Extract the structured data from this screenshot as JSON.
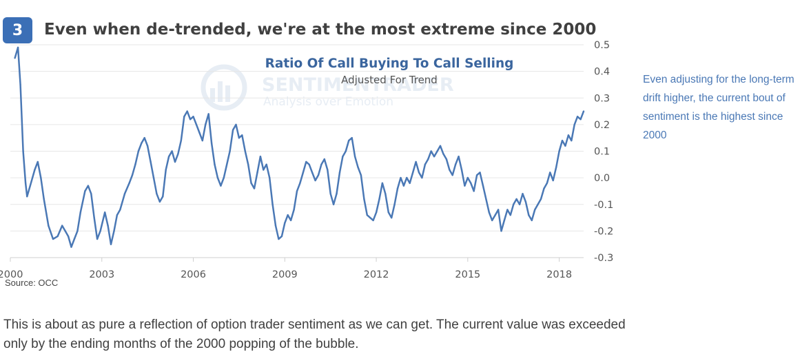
{
  "header": {
    "badge": "3",
    "title": "Even when de-trended, we're at the most extreme since 2000"
  },
  "colors": {
    "badge_bg": "#3b6fb6",
    "series": "#4a78b5",
    "note_text": "#4a78b5",
    "watermark": "#e7edf4"
  },
  "chart_data": {
    "type": "line",
    "title": "Ratio Of Call Buying To Call Selling",
    "subtitle": "Adjusted For Trend",
    "xlim": [
      2000.0,
      2018.8
    ],
    "ylim": [
      -0.3,
      0.5
    ],
    "x_ticks": [
      2000,
      2003,
      2006,
      2009,
      2012,
      2015,
      2018
    ],
    "x_tick_labels": [
      "2000",
      "2003",
      "2006",
      "2009",
      "2012",
      "2015",
      "2018"
    ],
    "y_ticks": [
      0.5,
      0.4,
      0.3,
      0.2,
      0.1,
      0.0,
      -0.1,
      -0.2,
      -0.3
    ],
    "y_tick_labels": [
      "0.5",
      "0.4",
      "0.3",
      "0.2",
      "0.1",
      "0.0",
      "-0.1",
      "-0.2",
      "-0.3"
    ],
    "grid": true,
    "series": [
      {
        "name": "",
        "points": [
          [
            2000.15,
            0.45
          ],
          [
            2000.25,
            0.49
          ],
          [
            2000.33,
            0.35
          ],
          [
            2000.42,
            0.1
          ],
          [
            2000.5,
            -0.02
          ],
          [
            2000.55,
            -0.07
          ],
          [
            2000.65,
            -0.03
          ],
          [
            2000.8,
            0.03
          ],
          [
            2000.9,
            0.06
          ],
          [
            2001.0,
            0.0
          ],
          [
            2001.1,
            -0.08
          ],
          [
            2001.25,
            -0.18
          ],
          [
            2001.4,
            -0.23
          ],
          [
            2001.55,
            -0.22
          ],
          [
            2001.7,
            -0.18
          ],
          [
            2001.8,
            -0.2
          ],
          [
            2001.9,
            -0.22
          ],
          [
            2002.0,
            -0.26
          ],
          [
            2002.1,
            -0.23
          ],
          [
            2002.2,
            -0.2
          ],
          [
            2002.3,
            -0.13
          ],
          [
            2002.45,
            -0.05
          ],
          [
            2002.55,
            -0.03
          ],
          [
            2002.65,
            -0.06
          ],
          [
            2002.75,
            -0.15
          ],
          [
            2002.85,
            -0.23
          ],
          [
            2002.95,
            -0.2
          ],
          [
            2003.1,
            -0.13
          ],
          [
            2003.2,
            -0.18
          ],
          [
            2003.3,
            -0.25
          ],
          [
            2003.4,
            -0.2
          ],
          [
            2003.5,
            -0.14
          ],
          [
            2003.6,
            -0.12
          ],
          [
            2003.75,
            -0.06
          ],
          [
            2003.9,
            -0.02
          ],
          [
            2004.0,
            0.01
          ],
          [
            2004.1,
            0.05
          ],
          [
            2004.2,
            0.1
          ],
          [
            2004.3,
            0.13
          ],
          [
            2004.4,
            0.15
          ],
          [
            2004.5,
            0.12
          ],
          [
            2004.6,
            0.06
          ],
          [
            2004.7,
            0.0
          ],
          [
            2004.8,
            -0.06
          ],
          [
            2004.9,
            -0.09
          ],
          [
            2005.0,
            -0.07
          ],
          [
            2005.1,
            0.03
          ],
          [
            2005.2,
            0.08
          ],
          [
            2005.3,
            0.1
          ],
          [
            2005.4,
            0.06
          ],
          [
            2005.5,
            0.09
          ],
          [
            2005.6,
            0.14
          ],
          [
            2005.7,
            0.23
          ],
          [
            2005.8,
            0.25
          ],
          [
            2005.9,
            0.22
          ],
          [
            2006.0,
            0.23
          ],
          [
            2006.1,
            0.2
          ],
          [
            2006.2,
            0.17
          ],
          [
            2006.3,
            0.14
          ],
          [
            2006.4,
            0.2
          ],
          [
            2006.5,
            0.24
          ],
          [
            2006.6,
            0.13
          ],
          [
            2006.7,
            0.05
          ],
          [
            2006.8,
            0.0
          ],
          [
            2006.9,
            -0.03
          ],
          [
            2007.0,
            0.0
          ],
          [
            2007.1,
            0.05
          ],
          [
            2007.2,
            0.1
          ],
          [
            2007.3,
            0.18
          ],
          [
            2007.4,
            0.2
          ],
          [
            2007.5,
            0.15
          ],
          [
            2007.6,
            0.16
          ],
          [
            2007.7,
            0.1
          ],
          [
            2007.8,
            0.05
          ],
          [
            2007.9,
            -0.02
          ],
          [
            2008.0,
            -0.04
          ],
          [
            2008.1,
            0.02
          ],
          [
            2008.2,
            0.08
          ],
          [
            2008.3,
            0.03
          ],
          [
            2008.4,
            0.05
          ],
          [
            2008.5,
            0.0
          ],
          [
            2008.6,
            -0.1
          ],
          [
            2008.7,
            -0.18
          ],
          [
            2008.8,
            -0.23
          ],
          [
            2008.9,
            -0.22
          ],
          [
            2009.0,
            -0.17
          ],
          [
            2009.1,
            -0.14
          ],
          [
            2009.2,
            -0.16
          ],
          [
            2009.3,
            -0.12
          ],
          [
            2009.4,
            -0.05
          ],
          [
            2009.5,
            -0.02
          ],
          [
            2009.6,
            0.02
          ],
          [
            2009.7,
            0.06
          ],
          [
            2009.8,
            0.05
          ],
          [
            2009.9,
            0.02
          ],
          [
            2010.0,
            -0.01
          ],
          [
            2010.1,
            0.01
          ],
          [
            2010.2,
            0.05
          ],
          [
            2010.3,
            0.07
          ],
          [
            2010.4,
            0.03
          ],
          [
            2010.5,
            -0.06
          ],
          [
            2010.6,
            -0.1
          ],
          [
            2010.7,
            -0.06
          ],
          [
            2010.8,
            0.02
          ],
          [
            2010.9,
            0.08
          ],
          [
            2011.0,
            0.1
          ],
          [
            2011.1,
            0.14
          ],
          [
            2011.2,
            0.15
          ],
          [
            2011.3,
            0.08
          ],
          [
            2011.4,
            0.04
          ],
          [
            2011.5,
            0.01
          ],
          [
            2011.6,
            -0.08
          ],
          [
            2011.7,
            -0.14
          ],
          [
            2011.8,
            -0.15
          ],
          [
            2011.9,
            -0.16
          ],
          [
            2012.0,
            -0.13
          ],
          [
            2012.1,
            -0.08
          ],
          [
            2012.2,
            -0.02
          ],
          [
            2012.3,
            -0.06
          ],
          [
            2012.4,
            -0.13
          ],
          [
            2012.5,
            -0.15
          ],
          [
            2012.6,
            -0.1
          ],
          [
            2012.7,
            -0.04
          ],
          [
            2012.8,
            0.0
          ],
          [
            2012.9,
            -0.03
          ],
          [
            2013.0,
            0.0
          ],
          [
            2013.1,
            -0.02
          ],
          [
            2013.2,
            0.02
          ],
          [
            2013.3,
            0.06
          ],
          [
            2013.4,
            0.02
          ],
          [
            2013.5,
            0.0
          ],
          [
            2013.6,
            0.05
          ],
          [
            2013.7,
            0.07
          ],
          [
            2013.8,
            0.1
          ],
          [
            2013.9,
            0.08
          ],
          [
            2014.0,
            0.1
          ],
          [
            2014.1,
            0.12
          ],
          [
            2014.2,
            0.09
          ],
          [
            2014.3,
            0.07
          ],
          [
            2014.4,
            0.03
          ],
          [
            2014.5,
            0.01
          ],
          [
            2014.6,
            0.05
          ],
          [
            2014.7,
            0.08
          ],
          [
            2014.8,
            0.03
          ],
          [
            2014.9,
            -0.03
          ],
          [
            2015.0,
            0.0
          ],
          [
            2015.1,
            -0.02
          ],
          [
            2015.2,
            -0.05
          ],
          [
            2015.3,
            0.01
          ],
          [
            2015.4,
            0.02
          ],
          [
            2015.5,
            -0.03
          ],
          [
            2015.6,
            -0.08
          ],
          [
            2015.7,
            -0.13
          ],
          [
            2015.8,
            -0.16
          ],
          [
            2015.9,
            -0.14
          ],
          [
            2016.0,
            -0.12
          ],
          [
            2016.1,
            -0.2
          ],
          [
            2016.2,
            -0.16
          ],
          [
            2016.3,
            -0.12
          ],
          [
            2016.4,
            -0.14
          ],
          [
            2016.5,
            -0.1
          ],
          [
            2016.6,
            -0.08
          ],
          [
            2016.7,
            -0.1
          ],
          [
            2016.8,
            -0.06
          ],
          [
            2016.9,
            -0.09
          ],
          [
            2017.0,
            -0.14
          ],
          [
            2017.1,
            -0.16
          ],
          [
            2017.2,
            -0.12
          ],
          [
            2017.3,
            -0.1
          ],
          [
            2017.4,
            -0.08
          ],
          [
            2017.5,
            -0.04
          ],
          [
            2017.6,
            -0.02
          ],
          [
            2017.7,
            0.02
          ],
          [
            2017.8,
            -0.01
          ],
          [
            2017.9,
            0.04
          ],
          [
            2018.0,
            0.1
          ],
          [
            2018.1,
            0.14
          ],
          [
            2018.2,
            0.12
          ],
          [
            2018.3,
            0.16
          ],
          [
            2018.4,
            0.14
          ],
          [
            2018.5,
            0.2
          ],
          [
            2018.6,
            0.23
          ],
          [
            2018.7,
            0.22
          ],
          [
            2018.8,
            0.25
          ]
        ]
      }
    ]
  },
  "watermark": {
    "main": "SENTIMENTRADER",
    "sub": "Analysis over Emotion"
  },
  "side_note": "Even adjusting for the long-term drift higher, the current bout of sentiment is the highest since 2000",
  "source": "Source: OCC",
  "caption": "This is about as pure a reflection of option trader sentiment as we can get. The current value was exceeded only by the ending months of the 2000 popping of the bubble."
}
